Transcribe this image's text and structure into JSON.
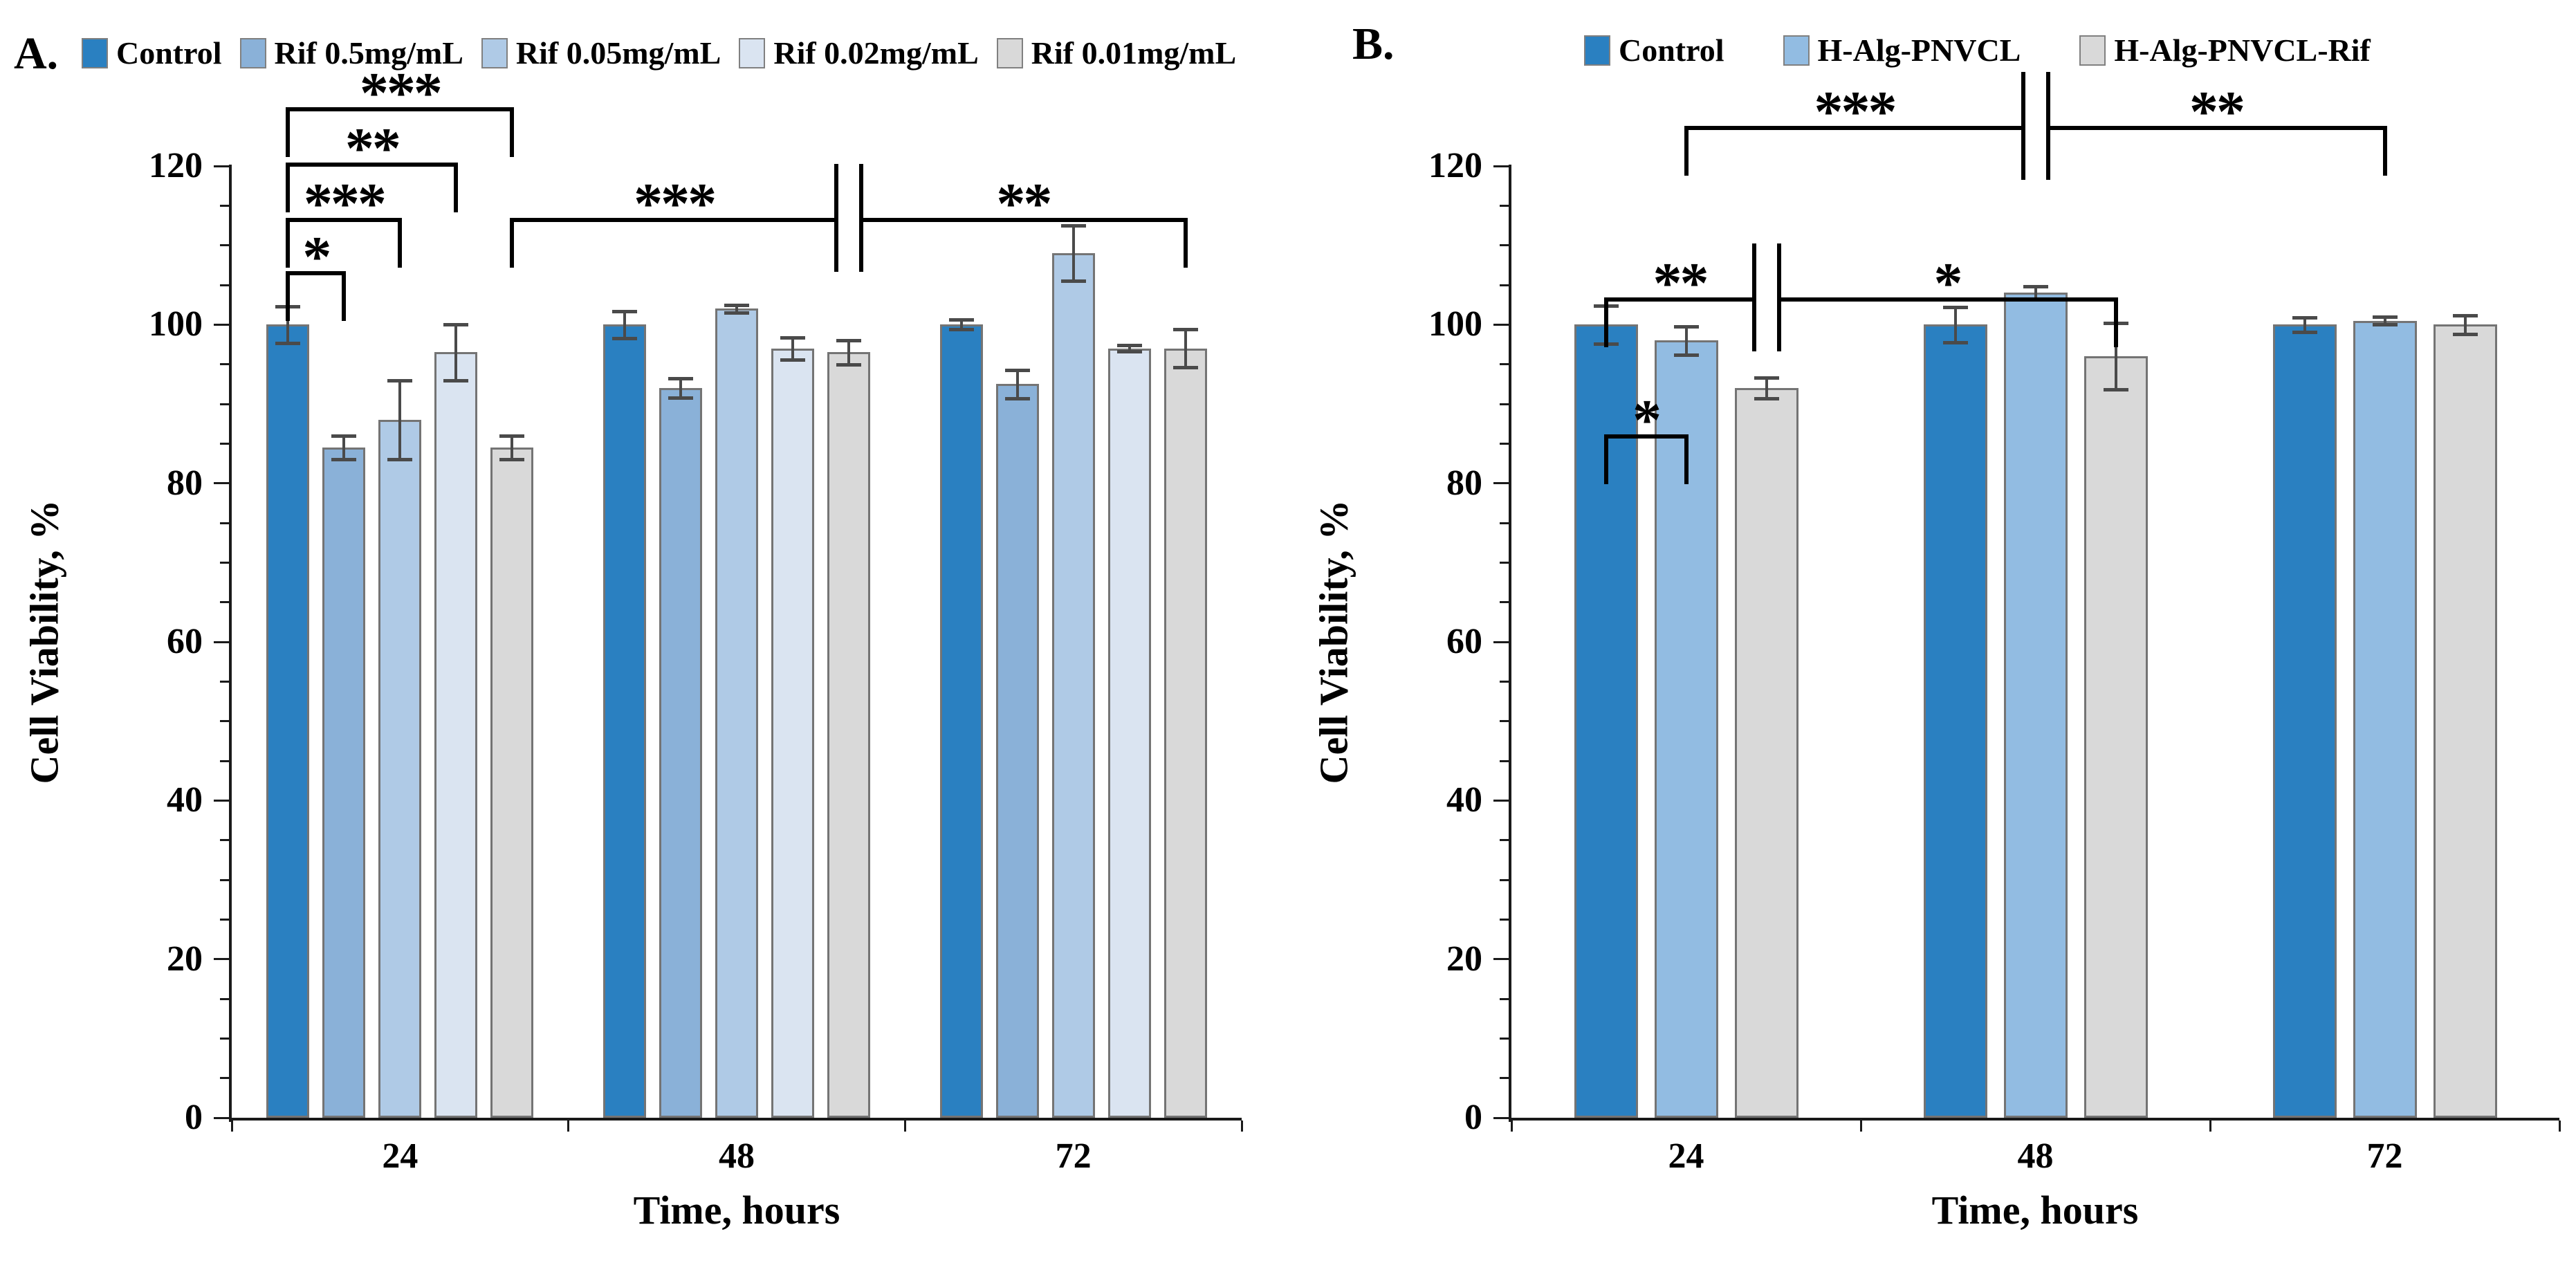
{
  "figure_title": "",
  "chart_data": [
    {
      "id": "A",
      "type": "bar",
      "panel_label": "A.",
      "xlabel": "Time, hours",
      "ylabel": "Cell Viability, %",
      "ylim": [
        0,
        120
      ],
      "ytick_step": 20,
      "yminor_step": 5,
      "grid": "off",
      "legend_position": "top",
      "error_bars": true,
      "bar_border_color": "#747474",
      "error_color": "#4a4a4a",
      "categories": [
        "24",
        "48",
        "72"
      ],
      "series": [
        {
          "name": "Control",
          "color": "#2a80c1",
          "values": [
            100,
            100,
            100
          ],
          "errors": [
            2.3,
            1.7,
            0.6
          ]
        },
        {
          "name": "Rif 0.5mg/mL",
          "color": "#8ab1d8",
          "values": [
            84.5,
            92,
            92.5
          ],
          "errors": [
            1.5,
            1.2,
            1.8
          ]
        },
        {
          "name": "Rif 0.05mg/mL",
          "color": "#afcae6",
          "values": [
            88,
            102,
            109
          ],
          "errors": [
            5,
            0.5,
            3.5
          ]
        },
        {
          "name": "Rif 0.02mg/mL",
          "color": "#dae4f1",
          "values": [
            96.5,
            97,
            97
          ],
          "errors": [
            3.5,
            1.4,
            0.4
          ]
        },
        {
          "name": "Rif 0.01mg/mL",
          "color": "#d9d9d9",
          "values": [
            84.5,
            96.5,
            97
          ],
          "errors": [
            1.5,
            1.5,
            2.4
          ]
        }
      ],
      "significance_brackets": [
        {
          "from_group": 0,
          "from_series": 0,
          "to_group": 0,
          "to_series": 1,
          "label": "*",
          "row": 3
        },
        {
          "from_group": 0,
          "from_series": 0,
          "to_group": 0,
          "to_series": 2,
          "label": "***",
          "row": 2
        },
        {
          "from_group": 0,
          "from_series": 0,
          "to_group": 0,
          "to_series": 3,
          "label": "**",
          "row": 1
        },
        {
          "from_group": 0,
          "from_series": 0,
          "to_group": 0,
          "to_series": 4,
          "label": "***",
          "row": 0
        },
        {
          "from_group": 0,
          "from_series": 4,
          "to_group": 1,
          "to_series": 4,
          "label": "***",
          "row": 2,
          "break_end": true
        },
        {
          "from_group": 1,
          "from_series": 4,
          "to_group": 2,
          "to_series": 4,
          "label": "**",
          "row": 2,
          "break_start": true
        }
      ]
    },
    {
      "id": "B",
      "type": "bar",
      "panel_label": "B.",
      "xlabel": "Time, hours",
      "ylabel": "Cell Viability, %",
      "ylim": [
        0,
        120
      ],
      "ytick_step": 20,
      "yminor_step": 5,
      "grid": "off",
      "legend_position": "top",
      "error_bars": true,
      "bar_border_color": "#747474",
      "error_color": "#4a4a4a",
      "categories": [
        "24",
        "48",
        "72"
      ],
      "series": [
        {
          "name": "Control",
          "color": "#2a80c1",
          "values": [
            100,
            100,
            100
          ],
          "errors": [
            2.4,
            2.2,
            0.9
          ]
        },
        {
          "name": "H-Alg-PNVCL",
          "color": "#92bce2",
          "values": [
            98,
            104,
            100.5
          ],
          "errors": [
            1.8,
            0.8,
            0.5
          ]
        },
        {
          "name": "H-Alg-PNVCL-Rif",
          "color": "#d9d9d9",
          "values": [
            92,
            96,
            100
          ],
          "errors": [
            1.3,
            4.2,
            1.2
          ]
        }
      ],
      "significance_brackets": [
        {
          "from_group": 0,
          "from_series": 0,
          "to_group": 0,
          "to_series": 1,
          "label": "*",
          "row": 2
        },
        {
          "from_group": 0,
          "from_series": 0,
          "to_group": 0,
          "to_series": 2,
          "label": "**",
          "row": 1,
          "break_end": true
        },
        {
          "from_group": 0,
          "from_series": 2,
          "to_group": 1,
          "to_series": 2,
          "label": "*",
          "row": 1,
          "break_start": true
        },
        {
          "from_group": 0,
          "from_series": 1,
          "to_group": 1,
          "to_series": 1,
          "label": "***",
          "row": 0,
          "break_end": true
        },
        {
          "from_group": 1,
          "from_series": 1,
          "to_group": 2,
          "to_series": 1,
          "label": "**",
          "row": 0,
          "break_start": true
        }
      ]
    }
  ]
}
